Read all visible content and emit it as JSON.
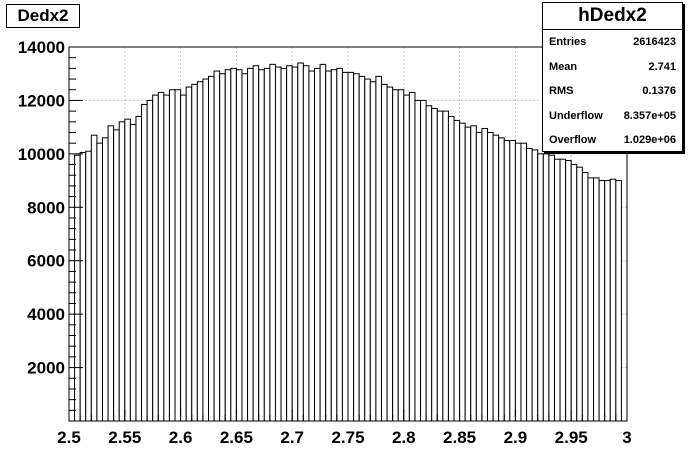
{
  "title": "Dedx2",
  "stats": {
    "name": "hDedx2",
    "rows": [
      {
        "label": "Entries",
        "value": "2616423"
      },
      {
        "label": "Mean",
        "value": "2.741"
      },
      {
        "label": "RMS",
        "value": "0.1376"
      },
      {
        "label": "Underflow",
        "value": "8.357e+05"
      },
      {
        "label": "Overflow",
        "value": "1.029e+06"
      }
    ]
  },
  "chart_data": {
    "type": "bar",
    "title": "Dedx2",
    "xlabel": "",
    "ylabel": "",
    "xlim": [
      2.5,
      3.0
    ],
    "ylim": [
      0,
      14000
    ],
    "grid": true,
    "bin_width": 0.005,
    "x_ticks": [
      "2.5",
      "2.55",
      "2.6",
      "2.65",
      "2.7",
      "2.75",
      "2.8",
      "2.85",
      "2.9",
      "2.95",
      "3"
    ],
    "y_ticks": [
      "2000",
      "4000",
      "6000",
      "8000",
      "10000",
      "12000",
      "14000"
    ],
    "bin_starts": [
      2.505,
      2.51,
      2.515,
      2.52,
      2.525,
      2.53,
      2.535,
      2.54,
      2.545,
      2.55,
      2.555,
      2.56,
      2.565,
      2.57,
      2.575,
      2.58,
      2.585,
      2.59,
      2.595,
      2.6,
      2.605,
      2.61,
      2.615,
      2.62,
      2.625,
      2.63,
      2.635,
      2.64,
      2.645,
      2.65,
      2.655,
      2.66,
      2.665,
      2.67,
      2.675,
      2.68,
      2.685,
      2.69,
      2.695,
      2.7,
      2.705,
      2.71,
      2.715,
      2.72,
      2.725,
      2.73,
      2.735,
      2.74,
      2.745,
      2.75,
      2.755,
      2.76,
      2.765,
      2.77,
      2.775,
      2.78,
      2.785,
      2.79,
      2.795,
      2.8,
      2.805,
      2.81,
      2.815,
      2.82,
      2.825,
      2.83,
      2.835,
      2.84,
      2.845,
      2.85,
      2.855,
      2.86,
      2.865,
      2.87,
      2.875,
      2.88,
      2.885,
      2.89,
      2.895,
      2.9,
      2.905,
      2.91,
      2.915,
      2.92,
      2.925,
      2.93,
      2.935,
      2.94,
      2.945,
      2.95,
      2.955,
      2.96,
      2.965,
      2.97,
      2.975,
      2.98,
      2.985,
      2.99
    ],
    "values": [
      9950,
      10050,
      10100,
      10700,
      10400,
      10600,
      11050,
      10900,
      11200,
      11300,
      11100,
      11400,
      11850,
      12000,
      12200,
      12300,
      12200,
      12400,
      12400,
      12200,
      12500,
      12600,
      12700,
      12800,
      12900,
      13100,
      13000,
      13150,
      13200,
      13150,
      13000,
      13200,
      13300,
      13150,
      13200,
      13350,
      13250,
      13200,
      13300,
      13250,
      13400,
      13300,
      13100,
      13200,
      13350,
      13100,
      13150,
      13200,
      13050,
      13050,
      13000,
      12900,
      12800,
      12700,
      12900,
      12600,
      12500,
      12400,
      12400,
      12200,
      12300,
      12000,
      12000,
      11800,
      11700,
      11600,
      11600,
      11400,
      11250,
      11150,
      11000,
      11050,
      10800,
      10950,
      10800,
      10700,
      10600,
      10500,
      10500,
      10400,
      10400,
      10200,
      10150,
      10000,
      10000,
      9950,
      9800,
      9800,
      9750,
      9600,
      9500,
      9300,
      9100,
      9100,
      9000,
      9000,
      9050,
      9000
    ]
  }
}
